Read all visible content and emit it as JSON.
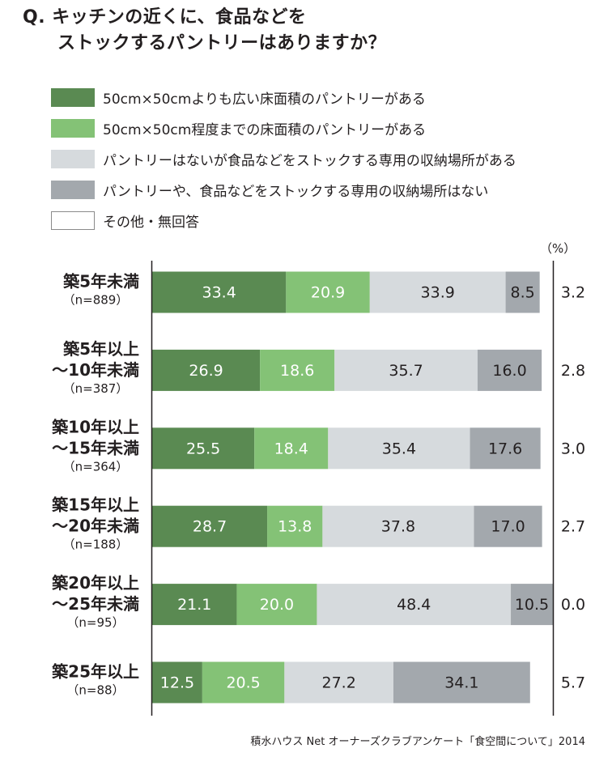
{
  "title": {
    "line1": "Q. キッチンの近くに、食品などを",
    "line2": "ストックするパントリーはありますか？"
  },
  "legend": [
    {
      "label": "50cm×50cmよりも広い床面積のパントリーがある",
      "color": "#5a8a52"
    },
    {
      "label": "50cm×50cm程度までの床面積のパントリーがある",
      "color": "#84c276"
    },
    {
      "label": "パントリーはないが食品などをストックする専用の収納場所がある",
      "color": "#d6dadd"
    },
    {
      "label": "パントリーや、食品などをストックする専用の収納場所はない",
      "color": "#a3a8ad"
    },
    {
      "label": "その他・無回答",
      "color": "#ffffff"
    }
  ],
  "unit_label": "（%）",
  "source": "積水ハウス Net オーナーズクラブアンケート「食空間について」2014",
  "chart_data": {
    "type": "bar",
    "stacked": true,
    "orientation": "horizontal",
    "categories": [
      {
        "label_lines": [
          "築5年未満"
        ],
        "n": "（n=889）"
      },
      {
        "label_lines": [
          "築5年以上",
          "～10年未満"
        ],
        "n": "（n=387）"
      },
      {
        "label_lines": [
          "築10年以上",
          "～15年未満"
        ],
        "n": "（n=364）"
      },
      {
        "label_lines": [
          "築15年以上",
          "～20年未満"
        ],
        "n": "（n=188）"
      },
      {
        "label_lines": [
          "築20年以上",
          "～25年未満"
        ],
        "n": "（n=95）"
      },
      {
        "label_lines": [
          "築25年以上"
        ],
        "n": "（n=88）"
      }
    ],
    "series": [
      {
        "name": "50cm×50cmよりも広い床面積のパントリーがある",
        "color": "#5a8a52",
        "label_color": "#ffffff",
        "values": [
          33.4,
          26.9,
          25.5,
          28.7,
          21.1,
          12.5
        ]
      },
      {
        "name": "50cm×50cm程度までの床面積のパントリーがある",
        "color": "#84c276",
        "label_color": "#ffffff",
        "values": [
          20.9,
          18.6,
          18.4,
          13.8,
          20.0,
          20.5
        ]
      },
      {
        "name": "パントリーはないが食品などをストックする専用の収納場所がある",
        "color": "#d6dadd",
        "label_color": "#231f20",
        "values": [
          33.9,
          35.7,
          35.4,
          37.8,
          48.4,
          27.2
        ]
      },
      {
        "name": "パントリーや、食品などをストックする専用の収納場所はない",
        "color": "#a3a8ad",
        "label_color": "#231f20",
        "values": [
          8.5,
          16.0,
          17.6,
          17.0,
          10.5,
          34.1
        ]
      }
    ],
    "other_no_answer": {
      "name": "その他・無回答",
      "values": [
        3.2,
        2.8,
        3.0,
        2.7,
        0.0,
        5.7
      ]
    },
    "xlim": [
      0,
      100
    ]
  }
}
